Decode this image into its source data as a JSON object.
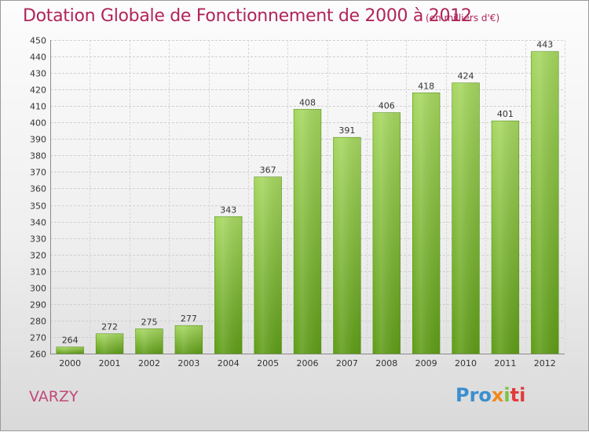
{
  "header": {
    "title": "Dotation Globale de Fonctionnement de 2000 à 2012",
    "unit": "(en milliers d'€)"
  },
  "commune": "VARZY",
  "logo": {
    "text": "Proxiti",
    "colors": [
      "#3a8fd0",
      "#f08a1c",
      "#7cc242",
      "#e23b3b"
    ]
  },
  "chart_data": {
    "type": "bar",
    "title": "Dotation Globale de Fonctionnement de 2000 à 2012",
    "subtitle": "(en milliers d'€)",
    "categories": [
      "2000",
      "2001",
      "2002",
      "2003",
      "2004",
      "2005",
      "2006",
      "2007",
      "2008",
      "2009",
      "2010",
      "2011",
      "2012"
    ],
    "values": [
      264,
      272,
      275,
      277,
      343,
      367,
      408,
      391,
      406,
      418,
      424,
      401,
      443
    ],
    "ylim": [
      260,
      450
    ],
    "yticks": [
      260,
      270,
      280,
      290,
      300,
      310,
      320,
      330,
      340,
      350,
      360,
      370,
      380,
      390,
      400,
      410,
      420,
      430,
      440,
      450
    ],
    "grid": true,
    "legend": "none",
    "bar_color": "#7dbb34",
    "title_color": "#b0245a"
  }
}
